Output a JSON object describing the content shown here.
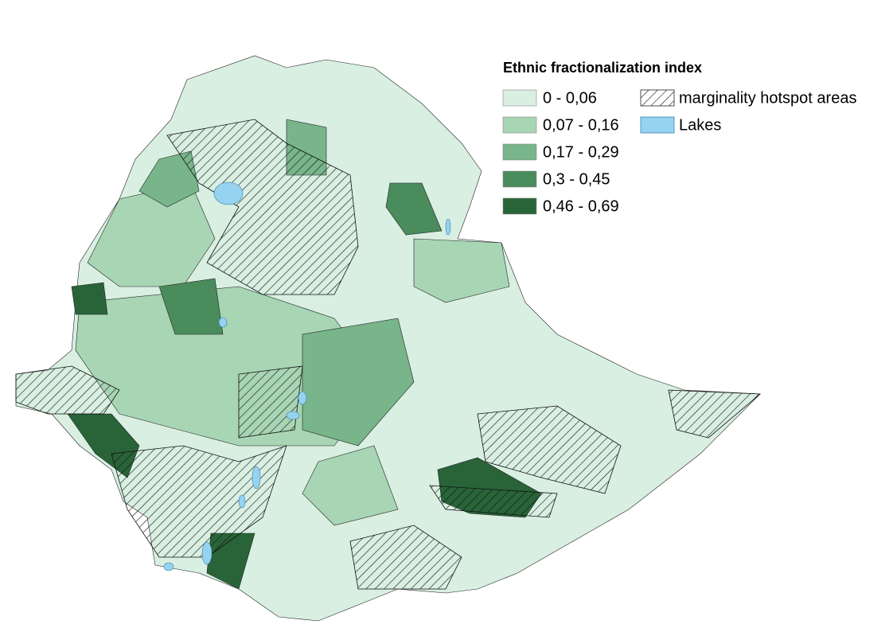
{
  "legend": {
    "title": "Ethnic fractionalization index",
    "classes": [
      {
        "label": "0 - 0,06",
        "color": "#d8efe2"
      },
      {
        "label": "0,07 - 0,16",
        "color": "#a8d5b4"
      },
      {
        "label": "0,17 - 0,29",
        "color": "#78b58a"
      },
      {
        "label": "0,3 - 0,45",
        "color": "#4a8c5c"
      },
      {
        "label": "0,46 - 0,69",
        "color": "#286438"
      }
    ],
    "overlays": [
      {
        "label": "marginality hotspot areas"
      },
      {
        "label": "Lakes",
        "color": "#96d3f0"
      }
    ]
  }
}
